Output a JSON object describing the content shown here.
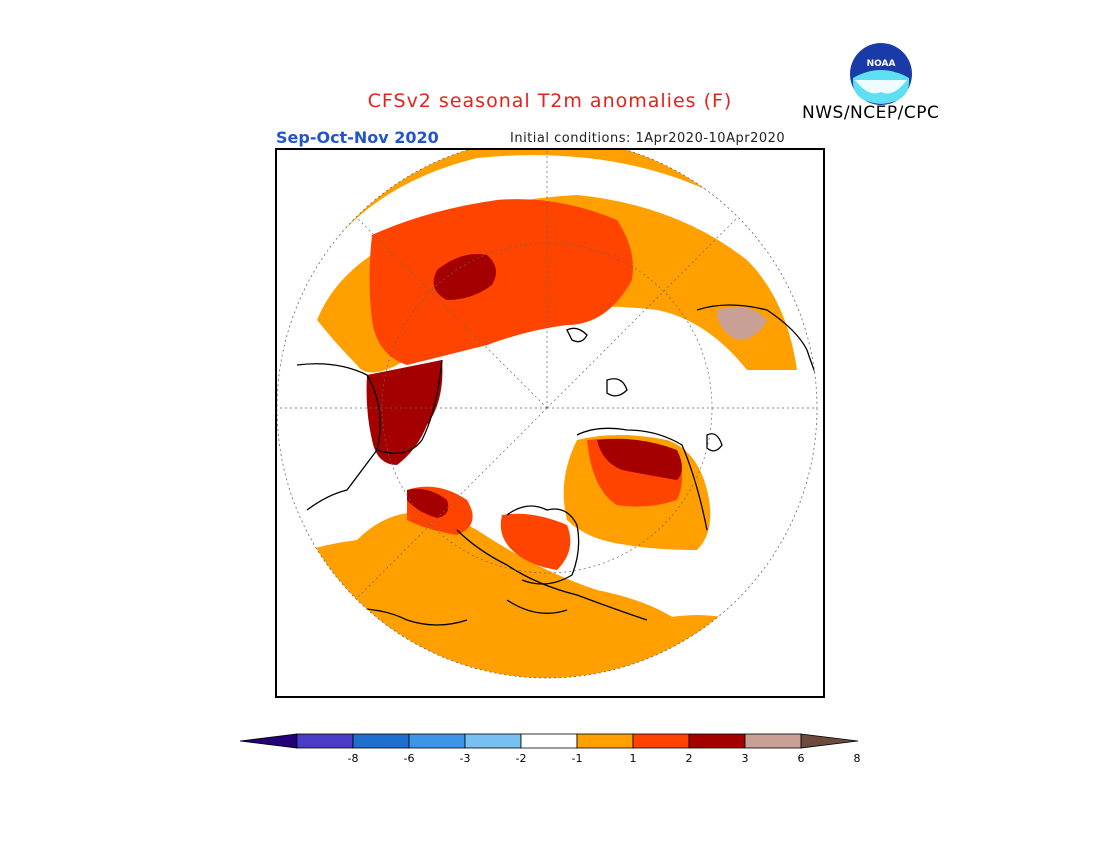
{
  "header": {
    "title": "CFSv2 seasonal T2m anomalies (F)",
    "season": "Sep-Oct-Nov 2020",
    "initial_conditions": "Initial conditions: 1Apr2020-10Apr2020",
    "agency": "NWS/NCEP/CPC",
    "logo_text": "NOAA"
  },
  "colorbar": {
    "colors": [
      "#230078",
      "#4a3cc8",
      "#1f6fd0",
      "#3d94e8",
      "#78bff2",
      "#ffffff",
      "#ffa000",
      "#ff4400",
      "#a50000",
      "#c8a096",
      "#6e4a3c"
    ],
    "ticks": [
      "-8",
      "-6",
      "-3",
      "-2",
      "-1",
      "1",
      "2",
      "3",
      "6",
      "8"
    ]
  },
  "map": {
    "projection": "north-polar-stereographic",
    "palette": {
      "plus1_to_2": "#ffa000",
      "plus2_to_3": "#ff4400",
      "plus3_to_6": "#a50000",
      "plus6_to_8": "#c8a096"
    }
  }
}
